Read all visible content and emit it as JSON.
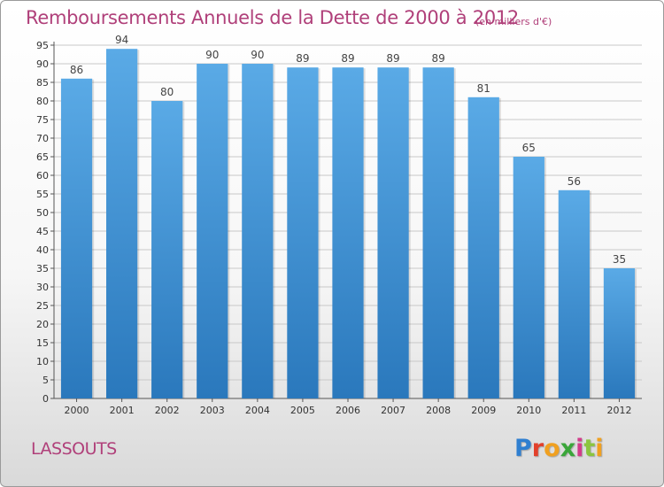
{
  "header": {
    "title": "Remboursements Annuels de la Dette de 2000 à 2012",
    "unit": "(en milliers d'€)"
  },
  "footer": {
    "place": "LASSOUTS",
    "logo_letters": [
      "P",
      "r",
      "o",
      "x",
      "i",
      "t",
      "i"
    ]
  },
  "colors": {
    "bar_light": "#5aaae6",
    "bar_dark": "#2a78bc",
    "grid": "#c8c8c8",
    "title": "#b0407a"
  },
  "chart_data": {
    "type": "bar",
    "title": "Remboursements Annuels de la Dette de 2000 à 2012",
    "xlabel": "",
    "ylabel": "",
    "categories": [
      "2000",
      "2001",
      "2002",
      "2003",
      "2004",
      "2005",
      "2006",
      "2007",
      "2008",
      "2009",
      "2010",
      "2011",
      "2012"
    ],
    "values": [
      86,
      94,
      80,
      90,
      90,
      89,
      89,
      89,
      89,
      81,
      65,
      56,
      35
    ],
    "data_labels": [
      "86",
      "94",
      "80",
      "90",
      "90",
      "89",
      "89",
      "89",
      "89",
      "81",
      "65",
      "56",
      "35"
    ],
    "ylim": [
      0,
      95
    ],
    "yticks": [
      0,
      5,
      10,
      15,
      20,
      25,
      30,
      35,
      40,
      45,
      50,
      55,
      60,
      65,
      70,
      75,
      80,
      85,
      90,
      95
    ],
    "ytick_labels": [
      "0",
      "5",
      "10",
      "15",
      "20",
      "25",
      "30",
      "35",
      "40",
      "45",
      "50",
      "55",
      "60",
      "65",
      "70",
      "75",
      "80",
      "85",
      "90",
      "95"
    ],
    "grid": true,
    "legend": "none"
  }
}
